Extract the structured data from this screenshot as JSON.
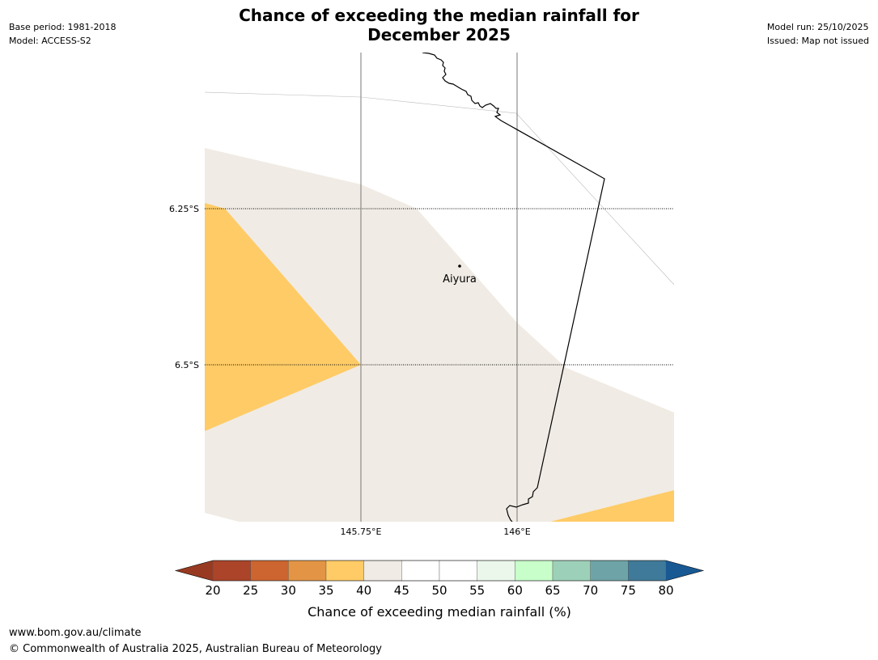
{
  "title_line1": "Chance of exceeding the median rainfall for",
  "title_line2": "December 2025",
  "meta_left": {
    "base_period": "Base period: 1981-2018",
    "model": "Model: ACCESS-S2"
  },
  "meta_right": {
    "model_run": "Model run: 25/10/2025",
    "issued": "Issued: Map not issued"
  },
  "map": {
    "lat_labels": [
      "6.25°S",
      "6.5°S"
    ],
    "lon_labels": [
      "145.75°E",
      "146°E"
    ],
    "location": {
      "name": "Aiyura"
    },
    "colors": {
      "below_40": "#fecb66",
      "band_40_45": "#f0ebe4",
      "coast": "#000000",
      "grid": "#000000"
    }
  },
  "colorbar": {
    "ticks": [
      "20",
      "25",
      "30",
      "35",
      "40",
      "45",
      "50",
      "55",
      "60",
      "65",
      "70",
      "75",
      "80"
    ],
    "colors": [
      "#ab4429",
      "#cc6530",
      "#e39545",
      "#fecb66",
      "#f0ebe4",
      "#ffffff",
      "#ffffff",
      "#ebf7ea",
      "#c8fec9",
      "#9dd0b9",
      "#6ea4a7",
      "#407a9a"
    ],
    "under_color": "#983a22",
    "over_color": "#185994",
    "label": "Chance of exceeding median rainfall (%)"
  },
  "footer": {
    "url": "www.bom.gov.au/climate",
    "copyright": "© Commonwealth of Australia 2025, Australian Bureau of Meteorology"
  }
}
